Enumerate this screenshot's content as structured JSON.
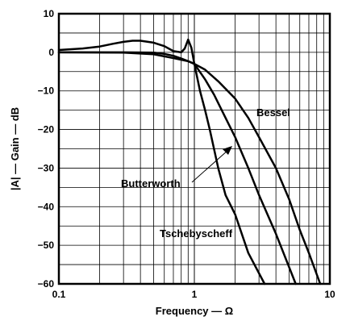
{
  "chart_data": {
    "type": "line",
    "xlabel": "Frequency — Ω",
    "ylabel": "|A| — Gain — dB",
    "xscale": "log",
    "xlim": [
      0.1,
      10
    ],
    "ylim": [
      -60,
      10
    ],
    "x_ticks": [
      {
        "value": 0.1,
        "label": "0.1"
      },
      {
        "value": 1,
        "label": "1"
      },
      {
        "value": 10,
        "label": "10"
      }
    ],
    "y_ticks": [
      {
        "value": 10,
        "label": "10"
      },
      {
        "value": 0,
        "label": "0"
      },
      {
        "value": -10,
        "label": "−10"
      },
      {
        "value": -20,
        "label": "−20"
      },
      {
        "value": -30,
        "label": "−30"
      },
      {
        "value": -40,
        "label": "−40"
      },
      {
        "value": -50,
        "label": "−50"
      },
      {
        "value": -60,
        "label": "−60"
      }
    ],
    "grid": true,
    "series": [
      {
        "name": "Tschebyscheff",
        "points": [
          [
            0.1,
            0.6
          ],
          [
            0.15,
            1.0
          ],
          [
            0.2,
            1.5
          ],
          [
            0.25,
            2.2
          ],
          [
            0.3,
            2.7
          ],
          [
            0.35,
            3.0
          ],
          [
            0.4,
            3.0
          ],
          [
            0.5,
            2.5
          ],
          [
            0.6,
            1.6
          ],
          [
            0.7,
            0.3
          ],
          [
            0.8,
            0.0
          ],
          [
            0.85,
            1.0
          ],
          [
            0.9,
            3.3
          ],
          [
            0.95,
            1.2
          ],
          [
            1.0,
            -3.0
          ],
          [
            1.1,
            -10
          ],
          [
            1.2,
            -15
          ],
          [
            1.3,
            -20
          ],
          [
            1.5,
            -30
          ],
          [
            1.7,
            -37
          ],
          [
            2.0,
            -42
          ],
          [
            2.5,
            -52
          ],
          [
            3.3,
            -60
          ]
        ]
      },
      {
        "name": "Butterworth",
        "points": [
          [
            0.1,
            0.0
          ],
          [
            0.3,
            0.0
          ],
          [
            0.5,
            -0.1
          ],
          [
            0.6,
            -0.4
          ],
          [
            0.7,
            -0.9
          ],
          [
            0.8,
            -1.6
          ],
          [
            0.9,
            -2.3
          ],
          [
            1.0,
            -3.0
          ],
          [
            1.2,
            -7
          ],
          [
            1.4,
            -11
          ],
          [
            1.7,
            -17
          ],
          [
            2.0,
            -22
          ],
          [
            2.5,
            -30
          ],
          [
            3.0,
            -37
          ],
          [
            4.0,
            -47
          ],
          [
            5.6,
            -60
          ]
        ]
      },
      {
        "name": "Bessel",
        "points": [
          [
            0.1,
            0.0
          ],
          [
            0.3,
            -0.1
          ],
          [
            0.5,
            -0.5
          ],
          [
            0.7,
            -1.5
          ],
          [
            0.9,
            -2.3
          ],
          [
            1.0,
            -3.0
          ],
          [
            1.2,
            -4.5
          ],
          [
            1.5,
            -7.5
          ],
          [
            2.0,
            -12
          ],
          [
            2.5,
            -17
          ],
          [
            3.0,
            -22
          ],
          [
            4.0,
            -30
          ],
          [
            5.0,
            -38
          ],
          [
            6.0,
            -46
          ],
          [
            7.0,
            -52
          ],
          [
            8.5,
            -60
          ]
        ]
      }
    ],
    "annotations": [
      {
        "text": "Bessel",
        "series": "Bessel"
      },
      {
        "text": "Butterworth",
        "series": "Butterworth"
      },
      {
        "text": "Tschebyscheff",
        "series": "Tschebyscheff"
      }
    ]
  }
}
